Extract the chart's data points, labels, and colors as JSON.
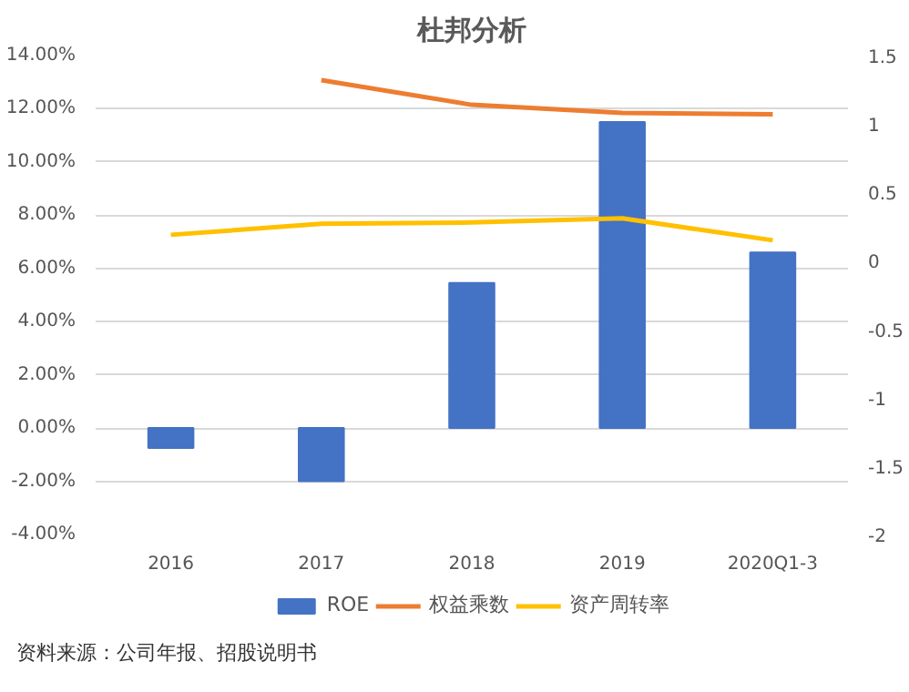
{
  "chart_data": {
    "type": "bar",
    "title": "杜邦分析",
    "categories": [
      "2016",
      "2017",
      "2018",
      "2019",
      "2020Q1-3"
    ],
    "series": [
      {
        "name": "ROE",
        "type": "bar",
        "color": "#4472c4",
        "values": [
          -0.75,
          -2.0,
          5.45,
          11.5,
          6.6
        ]
      },
      {
        "name": "权益乘数",
        "type": "line",
        "axis": "y2",
        "color": "#ed7d31",
        "values": [
          null,
          1.32,
          1.14,
          1.08,
          1.07
        ]
      },
      {
        "name": "资产周转率",
        "type": "line",
        "axis": "y2",
        "color": "#ffc000",
        "values": [
          0.19,
          0.27,
          0.28,
          0.31,
          0.15
        ]
      }
    ],
    "ylim": [
      -4,
      14
    ],
    "yticks": [
      {
        "value": -4,
        "label": "-4.00%"
      },
      {
        "value": -2,
        "label": "-2.00%"
      },
      {
        "value": 0,
        "label": "0.00%"
      },
      {
        "value": 2,
        "label": "2.00%"
      },
      {
        "value": 4,
        "label": "4.00%"
      },
      {
        "value": 6,
        "label": "6.00%"
      },
      {
        "value": 8,
        "label": "8.00%"
      },
      {
        "value": 10,
        "label": "10.00%"
      },
      {
        "value": 12,
        "label": "12.00%"
      },
      {
        "value": 14,
        "label": "14.00%"
      }
    ],
    "y2lim": [
      -2,
      1.5
    ],
    "y2ticks": [
      -2,
      -1.5,
      -1,
      -0.5,
      0,
      0.5,
      1,
      1.5
    ],
    "grid": "y",
    "legend": "bottom",
    "annotations": [
      "资料来源：公司年报、招股说明书"
    ]
  }
}
